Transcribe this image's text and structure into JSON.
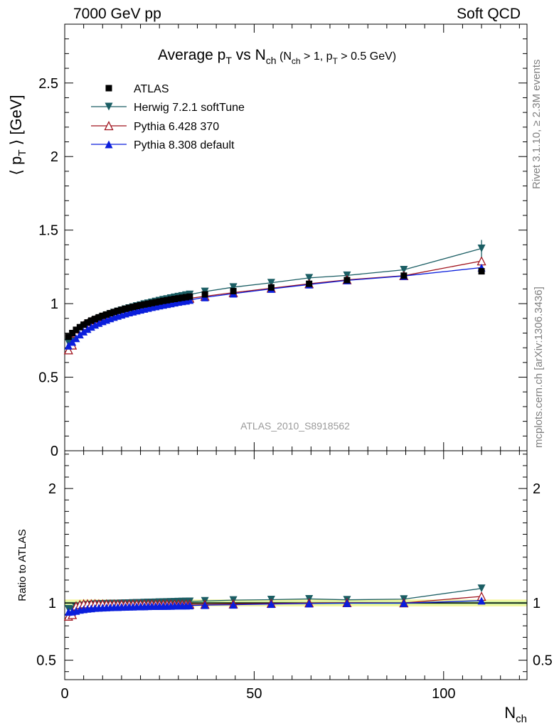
{
  "header": {
    "left": "7000 GeV pp",
    "right": "Soft QCD"
  },
  "side_labels": {
    "rivet": "Rivet 3.1.10, ≥ 2.3M events",
    "mcplots": "mcplots.cern.ch [arXiv:1306.3436]"
  },
  "watermark": "ATLAS_2010_S8918562",
  "chart_data": {
    "type": "line",
    "title": "Average p_T vs N_ch (N_ch > 1, p_T > 0.5 GeV)",
    "xlabel": "N_ch",
    "ylabel": "⟨ p_T ⟩ [GeV]",
    "ratio_ylabel": "Ratio to ATLAS",
    "xlim": [
      0,
      122
    ],
    "ylim": [
      0,
      2.9
    ],
    "ratio_ylim": [
      0.33,
      2.33
    ],
    "x_ticks": [
      "0",
      "50",
      "100"
    ],
    "y_ticks": [
      "0",
      "0.5",
      "1",
      "1.5",
      "2",
      "2.5"
    ],
    "ratio_y_ticks": [
      "0.5",
      "1",
      "2"
    ],
    "x": [
      1,
      2,
      3,
      4,
      5,
      6,
      7,
      8,
      9,
      10,
      11,
      12,
      13,
      14,
      15,
      16,
      17,
      18,
      19,
      20,
      21,
      22,
      23,
      24,
      25,
      26,
      27,
      28,
      29,
      30,
      31,
      32,
      33,
      37,
      44.5,
      54.5,
      64.5,
      74.5,
      89.5,
      110
    ],
    "series": [
      {
        "name": "ATLAS",
        "color": "#000000",
        "marker": "square",
        "values": [
          0.775,
          0.8,
          0.822,
          0.84,
          0.857,
          0.872,
          0.885,
          0.896,
          0.907,
          0.917,
          0.926,
          0.935,
          0.943,
          0.951,
          0.958,
          0.965,
          0.971,
          0.977,
          0.983,
          0.989,
          0.994,
          0.999,
          1.004,
          1.009,
          1.014,
          1.019,
          1.023,
          1.028,
          1.032,
          1.036,
          1.04,
          1.044,
          1.048,
          1.063,
          1.085,
          1.11,
          1.135,
          1.16,
          1.19,
          1.22
        ]
      },
      {
        "name": "Herwig 7.2.1 softTune",
        "color": "#1b5e64",
        "marker": "triangle-down",
        "values": [
          0.735,
          0.755,
          0.79,
          0.815,
          0.838,
          0.857,
          0.872,
          0.886,
          0.898,
          0.909,
          0.919,
          0.929,
          0.938,
          0.946,
          0.954,
          0.962,
          0.969,
          0.976,
          0.983,
          0.989,
          0.996,
          1.002,
          1.008,
          1.014,
          1.02,
          1.026,
          1.031,
          1.037,
          1.042,
          1.047,
          1.052,
          1.057,
          1.062,
          1.082,
          1.112,
          1.142,
          1.175,
          1.192,
          1.23,
          1.375
        ]
      },
      {
        "name": "Pythia 6.428 370",
        "color": "#a0141e",
        "marker": "triangle-up-open",
        "values": [
          0.685,
          0.718,
          0.8,
          0.828,
          0.85,
          0.865,
          0.878,
          0.889,
          0.899,
          0.909,
          0.917,
          0.926,
          0.934,
          0.941,
          0.948,
          0.955,
          0.961,
          0.967,
          0.973,
          0.979,
          0.984,
          0.989,
          0.994,
          0.999,
          1.004,
          1.008,
          1.013,
          1.017,
          1.021,
          1.025,
          1.029,
          1.033,
          1.036,
          1.05,
          1.075,
          1.105,
          1.135,
          1.162,
          1.19,
          1.29
        ]
      },
      {
        "name": "Pythia 8.308 default",
        "color": "#0a1edc",
        "marker": "triangle-up",
        "values": [
          0.715,
          0.74,
          0.765,
          0.79,
          0.81,
          0.828,
          0.843,
          0.857,
          0.869,
          0.88,
          0.89,
          0.9,
          0.909,
          0.917,
          0.925,
          0.933,
          0.94,
          0.946,
          0.953,
          0.959,
          0.965,
          0.971,
          0.977,
          0.982,
          0.987,
          0.992,
          0.997,
          1.002,
          1.007,
          1.012,
          1.016,
          1.02,
          1.025,
          1.043,
          1.068,
          1.1,
          1.13,
          1.158,
          1.188,
          1.245
        ]
      }
    ]
  }
}
